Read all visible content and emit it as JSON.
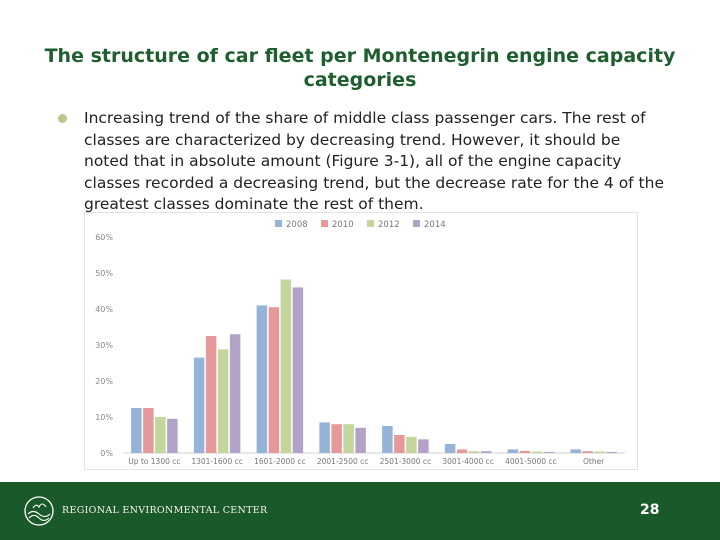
{
  "slide": {
    "title": "The structure of car fleet per Montenegrin engine capacity categories",
    "bullet": "Increasing trend of the share of middle class passenger cars. The rest of classes are characterized by decreasing trend. However, it should be noted that in absolute amount (Figure 3-1), all of the engine capacity classes recorded a decreasing trend, but the decrease rate for the 4 of the greatest classes dominate the rest of them.",
    "page_number": "28"
  },
  "footer": {
    "org_name": "REGIONAL ENVIRONMENTAL CENTER"
  },
  "chart_data": {
    "type": "bar",
    "title": "",
    "xlabel": "",
    "ylabel": "",
    "ylim": [
      0,
      60
    ],
    "yticks": [
      "0%",
      "10%",
      "20%",
      "30%",
      "40%",
      "50%",
      "60%"
    ],
    "legend_position": "top",
    "grid": false,
    "categories": [
      "Up to 1300 cc",
      "1301-1600 cc",
      "1601-2000 cc",
      "2001-2500 cc",
      "2501-3000 cc",
      "3001-4000 cc",
      "4001-5000 cc",
      "Other"
    ],
    "series": [
      {
        "name": "2008",
        "color": "#95b3d7",
        "values": [
          12.5,
          26.5,
          41,
          8.5,
          7.5,
          2.5,
          1,
          1
        ]
      },
      {
        "name": "2010",
        "color": "#e6999a",
        "values": [
          12.5,
          32.5,
          40.5,
          8,
          5,
          1,
          0.6,
          0.5
        ]
      },
      {
        "name": "2012",
        "color": "#c3d69b",
        "values": [
          10,
          28.8,
          48.2,
          8,
          4.5,
          0.5,
          0.4,
          0.4
        ]
      },
      {
        "name": "2014",
        "color": "#b3a2c7",
        "values": [
          9.5,
          33,
          46,
          7,
          3.8,
          0.5,
          0.3,
          0.3
        ]
      }
    ]
  }
}
